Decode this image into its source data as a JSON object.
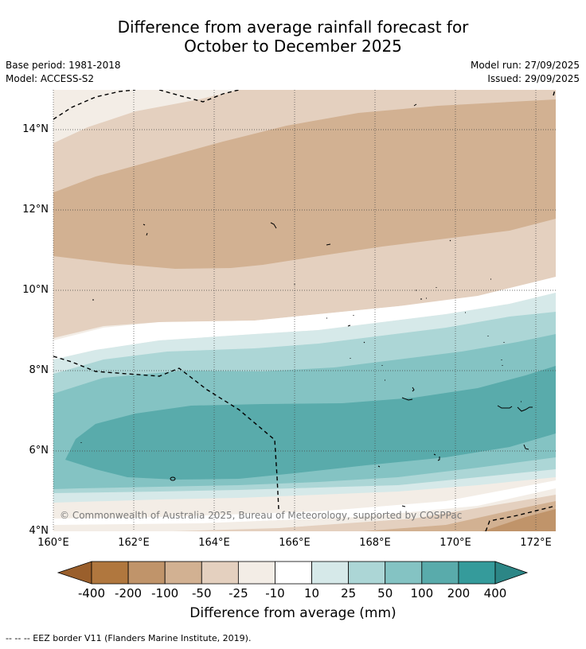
{
  "title": {
    "line1": "Difference from average rainfall forecast for",
    "line2": "October to December 2025"
  },
  "meta": {
    "base_period": "Base period: 1981-2018",
    "model": "Model: ACCESS-S2",
    "model_run": "Model run: 27/09/2025",
    "issued": "Issued: 29/09/2025"
  },
  "map": {
    "lat_labels": [
      "14°N",
      "12°N",
      "10°N",
      "8°N",
      "6°N",
      "4°N"
    ],
    "lon_labels": [
      "160°E",
      "162°E",
      "164°E",
      "166°E",
      "168°E",
      "170°E",
      "172°E"
    ],
    "copyright": "© Commonwealth of Australia 2025, Bureau of Meteorology, supported by COSPPac"
  },
  "colorbar": {
    "labels": [
      "-400",
      "-200",
      "-100",
      "-50",
      "-25",
      "-10",
      "10",
      "25",
      "50",
      "100",
      "200",
      "400"
    ],
    "colors": [
      "#9a5f2c",
      "#b0773e",
      "#c0946a",
      "#d2b192",
      "#e4d0bf",
      "#f3ede6",
      "#ffffff",
      "#d6e9e9",
      "#acd6d6",
      "#84c3c3",
      "#59abab",
      "#359b9b",
      "#2c8686"
    ],
    "title": "Difference from average (mm)"
  },
  "legend": {
    "text": "--  --  -- EEZ border V11 (Flanders Marine Institute, 2019)."
  }
}
